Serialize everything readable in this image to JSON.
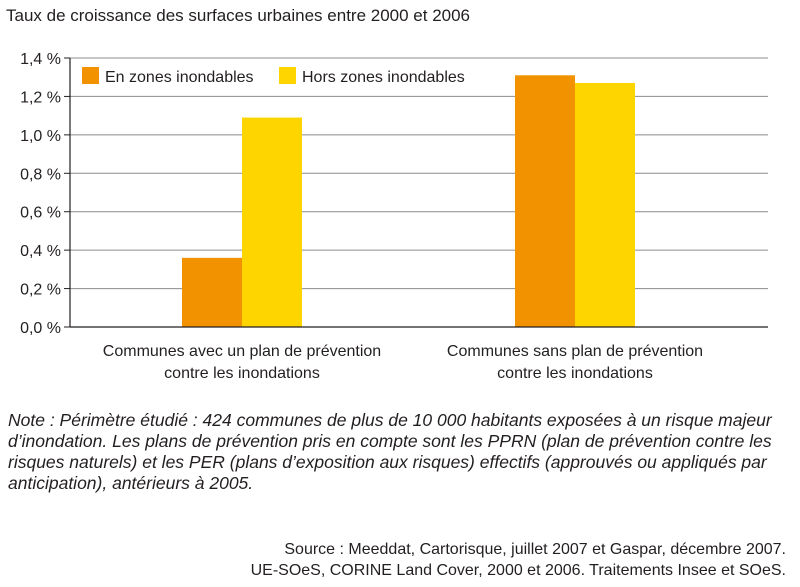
{
  "chart_data": {
    "type": "bar",
    "title": "Taux de croissance des surfaces urbaines entre 2000 et 2006",
    "categories": [
      [
        "Communes avec un plan de prévention",
        "contre les inondations"
      ],
      [
        "Communes sans plan de prévention",
        "contre les inondations"
      ]
    ],
    "series": [
      {
        "name": "En zones inondables",
        "values": [
          0.36,
          1.31
        ],
        "color": "#f39200"
      },
      {
        "name": "Hors zones inondables",
        "values": [
          1.09,
          1.27
        ],
        "color": "#ffd500"
      }
    ],
    "ylim": [
      0,
      1.4
    ],
    "yticks": [
      "0,0 %",
      "0,2 %",
      "0,4 %",
      "0,6 %",
      "0,8 %",
      "1,0 %",
      "1,2 %",
      "1,4 %"
    ],
    "grid": true,
    "legend_position": "top-left"
  },
  "note": "Note : Périmètre étudié : 424 communes de plus de 10 000 habitants exposées à un risque majeur d’inondation. Les plans de prévention pris en compte sont les PPRN (plan de prévention contre les risques naturels) et les PER (plans d’exposition aux risques) effectifs (approuvés ou appliqués par anticipation), antérieurs à 2005.",
  "source": [
    "Source : Meeddat, Cartorisque, juillet 2007 et Gaspar, décembre 2007.",
    "UE-SOeS, CORINE Land Cover, 2000 et 2006. Traitements Insee et SOeS."
  ]
}
